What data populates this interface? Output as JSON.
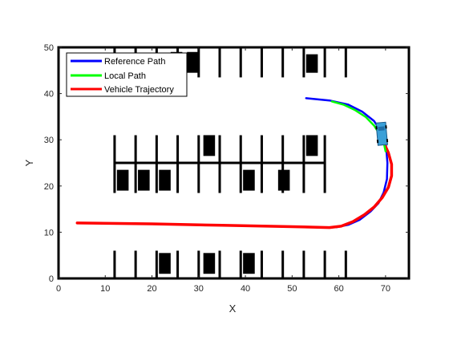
{
  "chart_data": {
    "type": "line",
    "title": "",
    "xlabel": "X",
    "ylabel": "Y",
    "xlim": [
      0,
      75
    ],
    "ylim": [
      0,
      50
    ],
    "xticks": [
      "0",
      "10",
      "20",
      "30",
      "40",
      "50",
      "60",
      "70"
    ],
    "yticks": [
      "0",
      "10",
      "20",
      "30",
      "40",
      "50"
    ],
    "grid": false,
    "legend_position": "top-left",
    "colors": {
      "reference": "#0000ff",
      "local": "#00ff00",
      "trajectory": "#ff0000",
      "car": "#000000",
      "line": "#000000",
      "vehicle": "#3aa0d8"
    },
    "series": [
      {
        "name": "Reference Path",
        "color": "#0000ff",
        "x": [
          53,
          58,
          62,
          65,
          67.5,
          69.2,
          70.1,
          70.4,
          70.3,
          69.6,
          68.5,
          66.8,
          64.5,
          62,
          59.5,
          57
        ],
        "y": [
          39,
          38.5,
          37.6,
          36.1,
          34.1,
          31.6,
          28.8,
          25,
          21.5,
          18.6,
          16.3,
          14.5,
          12.7,
          11.6,
          11.1,
          11
        ]
      },
      {
        "name": "Local Path",
        "color": "#00ff00",
        "x": [
          58.5,
          61,
          63.5,
          65.8,
          67.6,
          68.9,
          69.7,
          70
        ],
        "y": [
          38.3,
          37.6,
          36.4,
          34.9,
          33,
          30.9,
          29,
          27.5
        ]
      },
      {
        "name": "Vehicle Trajectory",
        "color": "#ff0000",
        "x": [
          4,
          20,
          35,
          50,
          58,
          60.5,
          63,
          65.5,
          67.6,
          69.3,
          70.6,
          71.3,
          71.3,
          70.6,
          69.8
        ],
        "y": [
          12,
          11.8,
          11.5,
          11.2,
          11,
          11.3,
          12.3,
          13.8,
          15.5,
          17.5,
          19.7,
          22.2,
          24.7,
          27.2,
          29
        ]
      }
    ],
    "parked_cars": [
      [
        24,
        44.5,
        2.5,
        4.5
      ],
      [
        27.5,
        44.5,
        2.5,
        4.5
      ],
      [
        53,
        44.5,
        2.5,
        4
      ],
      [
        31,
        26.5,
        2.5,
        4.5
      ],
      [
        53,
        26.5,
        2.5,
        4.5
      ],
      [
        12.5,
        19,
        2.5,
        4.5
      ],
      [
        17,
        19,
        2.5,
        4.5
      ],
      [
        21.5,
        19,
        2.5,
        4.5
      ],
      [
        39.5,
        19,
        2.5,
        4.5
      ],
      [
        47,
        19,
        2.5,
        4.5
      ],
      [
        21.5,
        1,
        2.5,
        4.5
      ],
      [
        31,
        1,
        2.5,
        4.5
      ],
      [
        39.5,
        1,
        2.5,
        4.5
      ]
    ],
    "lot_lines": {
      "vertical": [
        [
          12,
          0,
          6
        ],
        [
          16.5,
          0,
          6
        ],
        [
          21,
          0,
          6
        ],
        [
          25.5,
          0,
          6
        ],
        [
          30,
          0,
          6
        ],
        [
          34.5,
          0,
          6
        ],
        [
          39,
          0,
          6
        ],
        [
          43.5,
          0,
          6
        ],
        [
          48,
          0,
          6
        ],
        [
          52.5,
          0,
          6
        ],
        [
          57,
          0,
          6
        ],
        [
          61.5,
          0,
          6
        ],
        [
          12,
          18.5,
          31
        ],
        [
          16.5,
          18.5,
          31
        ],
        [
          21,
          18.5,
          31
        ],
        [
          25.5,
          18.5,
          31
        ],
        [
          30,
          18.5,
          31
        ],
        [
          34.5,
          18.5,
          31
        ],
        [
          39,
          18.5,
          31
        ],
        [
          43.5,
          18.5,
          31
        ],
        [
          48,
          18.5,
          31
        ],
        [
          52.5,
          18.5,
          31
        ],
        [
          57,
          18.5,
          31
        ],
        [
          12,
          43.5,
          50
        ],
        [
          16.5,
          43.5,
          50
        ],
        [
          21,
          43.5,
          50
        ],
        [
          25.5,
          43.5,
          50
        ],
        [
          30,
          43.5,
          50
        ],
        [
          34.5,
          43.5,
          50
        ],
        [
          39,
          43.5,
          50
        ],
        [
          43.5,
          43.5,
          50
        ],
        [
          48,
          43.5,
          50
        ],
        [
          52.5,
          43.5,
          50
        ],
        [
          57,
          43.5,
          50
        ],
        [
          61.5,
          43.5,
          50
        ]
      ],
      "horizontal": [
        [
          12,
          57,
          25
        ]
      ]
    },
    "vehicle": {
      "x": 69.2,
      "y": 31.3,
      "heading_deg": 95
    }
  }
}
